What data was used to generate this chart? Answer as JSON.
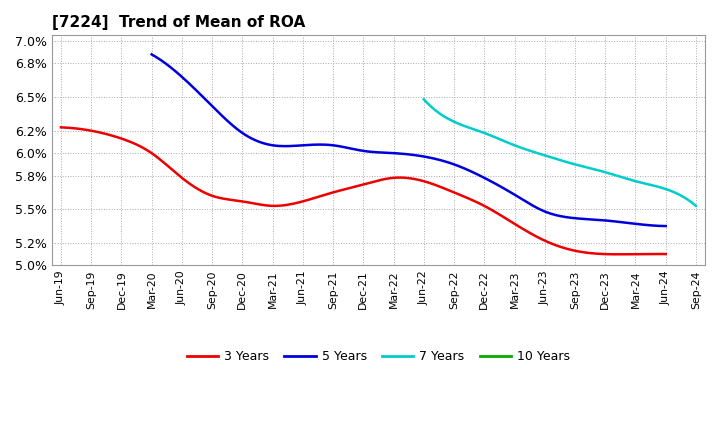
{
  "title": "[7224]  Trend of Mean of ROA",
  "background_color": "#ffffff",
  "plot_bg_color": "#ffffff",
  "grid_color": "#aaaaaa",
  "ylim": [
    0.05,
    0.0705
  ],
  "yticks": [
    0.05,
    0.052,
    0.055,
    0.058,
    0.06,
    0.062,
    0.065,
    0.068,
    0.07
  ],
  "ytick_labels": [
    "5.0%",
    "5.2%",
    "5.5%",
    "5.8%",
    "6.0%",
    "6.2%",
    "6.5%",
    "6.8%",
    "7.0%"
  ],
  "x_labels": [
    "Jun-19",
    "Sep-19",
    "Dec-19",
    "Mar-20",
    "Jun-20",
    "Sep-20",
    "Dec-20",
    "Mar-21",
    "Jun-21",
    "Sep-21",
    "Dec-21",
    "Mar-22",
    "Jun-22",
    "Sep-22",
    "Dec-22",
    "Mar-23",
    "Jun-23",
    "Sep-23",
    "Dec-23",
    "Mar-24",
    "Jun-24",
    "Sep-24"
  ],
  "series_3y": {
    "color": "#ee0000",
    "indices": [
      0,
      1,
      2,
      3,
      4,
      5,
      6,
      7,
      8,
      9,
      10,
      11,
      12,
      13,
      14,
      15,
      16,
      17,
      18,
      19,
      20
    ],
    "values": [
      0.0623,
      0.062,
      0.0613,
      0.06,
      0.0578,
      0.0562,
      0.0557,
      0.0553,
      0.0557,
      0.0565,
      0.0572,
      0.0578,
      0.0575,
      0.0565,
      0.0553,
      0.0537,
      0.0522,
      0.0513,
      0.051,
      0.051,
      0.051
    ]
  },
  "series_5y": {
    "color": "#0000dd",
    "indices": [
      3,
      4,
      5,
      6,
      7,
      8,
      9,
      10,
      11,
      12,
      13,
      14,
      15,
      16,
      17,
      18,
      19,
      20
    ],
    "values": [
      0.0688,
      0.0668,
      0.0642,
      0.0618,
      0.0607,
      0.0607,
      0.0607,
      0.0602,
      0.06,
      0.0597,
      0.059,
      0.0578,
      0.0563,
      0.0548,
      0.0542,
      0.054,
      0.0537,
      0.0535
    ]
  },
  "series_7y": {
    "color": "#00cccc",
    "indices": [
      12,
      13,
      14,
      15,
      16,
      17,
      18,
      19,
      20,
      21
    ],
    "values": [
      0.0648,
      0.0628,
      0.0618,
      0.0607,
      0.0598,
      0.059,
      0.0583,
      0.0575,
      0.0568,
      0.0553
    ]
  },
  "series_10y": {
    "color": "#00aa00",
    "indices": [],
    "values": []
  },
  "legend_colors": [
    "#ee0000",
    "#0000dd",
    "#00cccc",
    "#00aa00"
  ],
  "legend_labels": [
    "3 Years",
    "5 Years",
    "7 Years",
    "10 Years"
  ]
}
